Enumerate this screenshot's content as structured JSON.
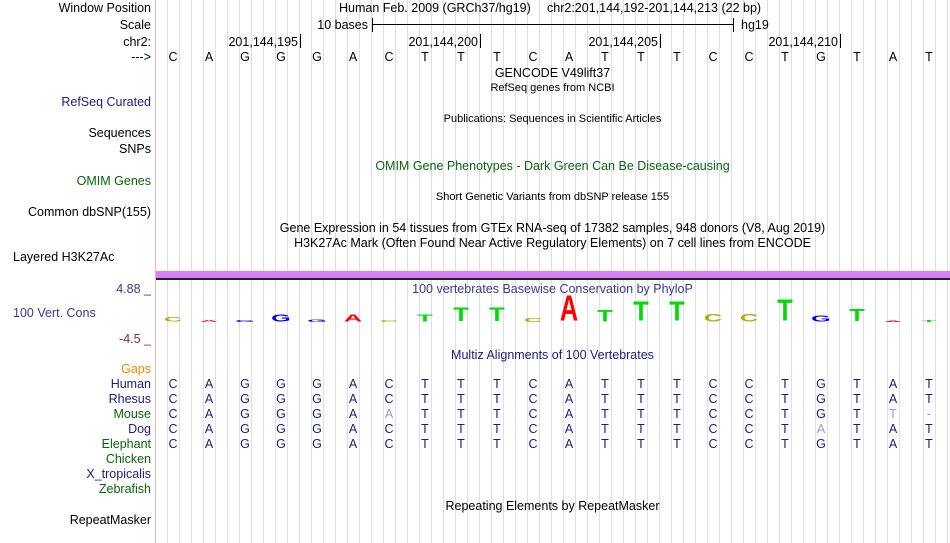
{
  "header": {
    "window_position_label": "Window Position",
    "assembly": "Human Feb. 2009 (GRCh37/hg19)",
    "position": "chr2:201,144,192-201,144,213 (22 bp)",
    "scale_label": "Scale",
    "scale_text": "10 bases",
    "scale_db": "hg19",
    "chrom_label": "chr2:",
    "strand_label": "--->",
    "ruler_ticks": [
      "201,144,195",
      "201,144,200",
      "201,144,205",
      "201,144,210"
    ]
  },
  "sequence": [
    "C",
    "A",
    "G",
    "G",
    "G",
    "A",
    "C",
    "T",
    "T",
    "T",
    "C",
    "A",
    "T",
    "T",
    "T",
    "C",
    "C",
    "T",
    "G",
    "T",
    "A",
    "T"
  ],
  "tracks": {
    "gencode_title": "GENCODE V49lift37",
    "refseq_title": "RefSeq genes from NCBI",
    "refseq_label": "RefSeq Curated",
    "publications_title": "Publications: Sequences in Scientific Articles",
    "sequences_label": "Sequences",
    "snps_label": "SNPs",
    "omim_title": "OMIM Gene Phenotypes - Dark Green Can Be Disease-causing",
    "omim_label": "OMIM Genes",
    "dbsnp_title": "Short Genetic Variants from dbSNP release 155",
    "dbsnp_label": "Common dbSNP(155)",
    "gtex_title": "Gene Expression in 54 tissues from GTEx RNA-seq of 17382 samples, 948 donors (V8, Aug 2019)",
    "h3k27ac_title": "H3K27Ac Mark (Often Found Near Active Regulatory Elements) on 7 cell lines from ENCODE",
    "h3k27ac_label": "Layered H3K27Ac",
    "phylop_title": "100 vertebrates Basewise Conservation by PhyloP",
    "phylop_label": "100 Vert. Cons",
    "phylop_max": "4.88 _",
    "phylop_min": "-4.5 _",
    "phylop_scores": [
      0.9,
      0.3,
      0.3,
      1.3,
      0.5,
      1.4,
      0.4,
      1.4,
      2.6,
      2.6,
      0.7,
      4.8,
      2.2,
      3.7,
      3.7,
      1.5,
      1.5,
      4.1,
      1.1,
      2.3,
      0,
      0.3
    ],
    "multiz_title": "Multiz Alignments of 100 Vertebrates",
    "gaps_label": "Gaps",
    "species": [
      {
        "name": "Human",
        "color": "navy",
        "bases": [
          "C",
          "A",
          "G",
          "G",
          "G",
          "A",
          "C",
          "T",
          "T",
          "T",
          "C",
          "A",
          "T",
          "T",
          "T",
          "C",
          "C",
          "T",
          "G",
          "T",
          "A",
          "T"
        ],
        "faded": []
      },
      {
        "name": "Rhesus",
        "color": "navy",
        "bases": [
          "C",
          "A",
          "G",
          "G",
          "G",
          "A",
          "C",
          "T",
          "T",
          "T",
          "C",
          "A",
          "T",
          "T",
          "T",
          "C",
          "C",
          "T",
          "G",
          "T",
          "A",
          "T"
        ],
        "faded": []
      },
      {
        "name": "Mouse",
        "color": "green",
        "bases": [
          "C",
          "A",
          "G",
          "G",
          "G",
          "A",
          "A",
          "T",
          "T",
          "T",
          "C",
          "A",
          "T",
          "T",
          "T",
          "C",
          "C",
          "T",
          "G",
          "T",
          "T",
          "-"
        ],
        "faded": [
          6,
          20,
          21
        ]
      },
      {
        "name": "Dog",
        "color": "navy",
        "bases": [
          "C",
          "A",
          "G",
          "G",
          "G",
          "A",
          "C",
          "T",
          "T",
          "T",
          "C",
          "A",
          "T",
          "T",
          "T",
          "C",
          "C",
          "T",
          "A",
          "T",
          "A",
          "T"
        ],
        "faded": [
          18
        ]
      },
      {
        "name": "Elephant",
        "color": "green",
        "bases": [
          "C",
          "A",
          "G",
          "G",
          "G",
          "A",
          "C",
          "T",
          "T",
          "T",
          "C",
          "A",
          "T",
          "T",
          "T",
          "C",
          "C",
          "T",
          "G",
          "T",
          "A",
          "T"
        ],
        "faded": []
      },
      {
        "name": "Chicken",
        "color": "green",
        "bases": [],
        "faded": []
      },
      {
        "name": "X_tropicalis",
        "color": "navy",
        "bases": [],
        "faded": []
      },
      {
        "name": "Zebrafish",
        "color": "green",
        "bases": [],
        "faded": []
      }
    ],
    "repeat_title": "Repeating Elements by RepeatMasker",
    "repeat_label": "RepeatMasker"
  },
  "colors": {
    "A": "#ff0000",
    "C": "#b0b000",
    "G": "#0000ff",
    "T": "#00dd00",
    "navy": "#1c1c80",
    "green": "#0b640b",
    "faded": "#9a9ac4",
    "highlight": "#d580f5"
  }
}
